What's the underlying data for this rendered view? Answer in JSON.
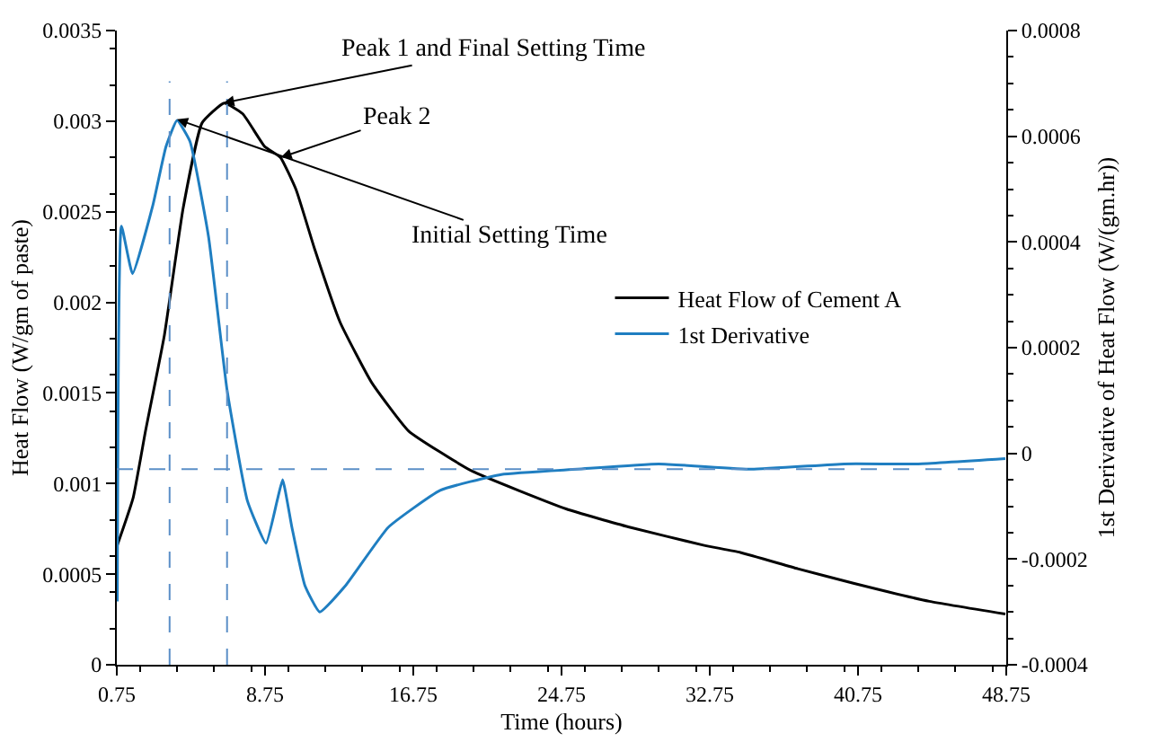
{
  "chart_data": {
    "type": "line",
    "xlabel": "Time (hours)",
    "ylabel": "Heat Flow (W/gm of paste)",
    "y2label": "1st Derivative of Heat Flow (W/(gm.hr))",
    "xlim": [
      0.75,
      48.75
    ],
    "xticks": [
      0.75,
      8.75,
      16.75,
      24.75,
      32.75,
      40.75,
      48.75
    ],
    "ylim": [
      0,
      0.0035
    ],
    "yticks": [
      0,
      0.0005,
      0.001,
      0.0015,
      0.002,
      0.0025,
      0.003,
      0.0035
    ],
    "y2lim": [
      -0.0004,
      0.0008
    ],
    "y2ticks": [
      -0.0004,
      -0.0002,
      0,
      0.0002,
      0.0004,
      0.0006,
      0.0008
    ],
    "legend": "right",
    "line_style": "solid",
    "marker": "none",
    "series": [
      {
        "name": "Heat Flow of Cement A",
        "color": "#000000",
        "x": [
          0.78,
          1.63,
          2.3,
          3.32,
          4.33,
          5.35,
          6.54,
          7.55,
          8.73,
          9.58,
          10.43,
          11.44,
          12.8,
          14.49,
          16.5,
          19.9,
          25.0,
          28.4,
          32.4,
          34.4,
          37.5,
          40.5,
          44.6,
          48.7
        ],
        "values": [
          0.00066,
          0.00092,
          0.00129,
          0.00182,
          0.00252,
          0.00299,
          0.0031,
          0.00304,
          0.00286,
          0.0028,
          0.00262,
          0.00229,
          0.00189,
          0.00156,
          0.00129,
          0.00107,
          0.00086,
          0.00076,
          0.00066,
          0.00062,
          0.00053,
          0.00045,
          0.00035,
          0.00028
        ]
      },
      {
        "name": "1st Derivative",
        "color": "#1f7ec1",
        "axis": "y2",
        "x": [
          0.78,
          1.0,
          1.6,
          2.7,
          3.4,
          4.0,
          4.7,
          5.7,
          6.7,
          7.8,
          8.8,
          9.4,
          9.7,
          10.2,
          10.9,
          11.7,
          13.1,
          15.4,
          18.2,
          21.5,
          25.6,
          30.0,
          35.0,
          40.0,
          44.0,
          48.7
        ],
        "values": [
          -0.00028,
          0.00043,
          0.00034,
          0.00047,
          0.00058,
          0.00063,
          0.00059,
          0.00041,
          0.00012,
          -9e-05,
          -0.00017,
          -9e-05,
          -5e-05,
          -0.00014,
          -0.00025,
          -0.0003,
          -0.00025,
          -0.00014,
          -7e-05,
          -4e-05,
          -3e-05,
          -2e-05,
          -3e-05,
          -2e-05,
          -2e-05,
          -1e-05
        ]
      }
    ],
    "ref_lines": [
      {
        "axis": "y",
        "value": 0.00108,
        "color": "#5b8fc7",
        "line_style": "dashed"
      },
      {
        "axis": "x",
        "value": 3.6,
        "color": "#5b8fc7",
        "line_style": "dashed"
      },
      {
        "axis": "x",
        "value": 6.7,
        "color": "#5b8fc7",
        "line_style": "dashed"
      }
    ],
    "annotations": [
      {
        "text": "Peak 1 and Final Setting Time",
        "x": 6.5,
        "y": 0.0031
      },
      {
        "text": "Peak 2",
        "x": 9.6,
        "y": 0.0028
      },
      {
        "text": "Initial Setting Time",
        "x": 4.0,
        "y": 0.00301
      }
    ]
  }
}
